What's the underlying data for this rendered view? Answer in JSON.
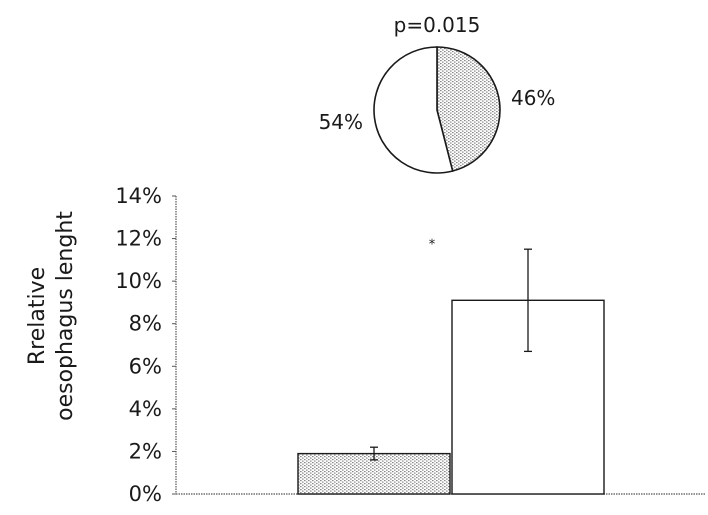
{
  "chart_data": [
    {
      "type": "pie",
      "title": "p=0.015",
      "slices": [
        {
          "label": "46%",
          "value": 46,
          "pattern": "dotted"
        },
        {
          "label": "54%",
          "value": 54,
          "pattern": "plain"
        }
      ]
    },
    {
      "type": "bar",
      "ylabel": [
        "Rrelative",
        "oesophagus lenght"
      ],
      "ylim": [
        0,
        0.14
      ],
      "yticks": [
        0,
        0.02,
        0.04,
        0.06,
        0.08,
        0.1,
        0.12,
        0.14
      ],
      "ytick_labels": [
        "0%",
        "2%",
        "4%",
        "6%",
        "8%",
        "10%",
        "12%",
        "14%"
      ],
      "categories": [
        "",
        ""
      ],
      "values": [
        0.019,
        0.091
      ],
      "errors": [
        0.003,
        0.024
      ],
      "patterns": [
        "dotted",
        "plain"
      ],
      "annotations": [
        {
          "text": "*",
          "bar_index": 1,
          "y": 0.12
        }
      ]
    }
  ]
}
